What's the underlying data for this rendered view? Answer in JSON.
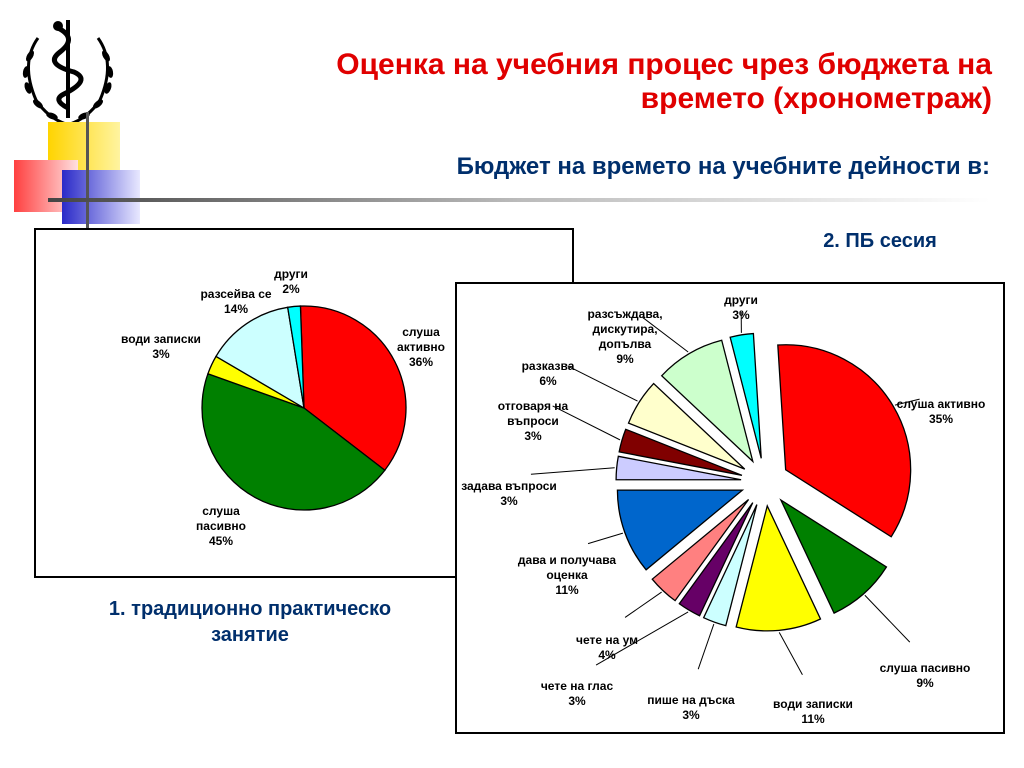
{
  "slide": {
    "title_line1": "Оценка на учебния процес чрез бюджета на",
    "title_line2": "времето (хронометраж)",
    "subtitle": "Бюджет на времето на учебните дейности в:",
    "caption1_line1": "1. традиционно практическо",
    "caption1_line2": "занятие",
    "caption2": "2. ПБ сесия",
    "colors": {
      "title": "#e00000",
      "subtitle": "#002f6c"
    }
  },
  "chart_data": [
    {
      "type": "pie",
      "title": "",
      "slices": [
        {
          "label_lines": [
            "слуша",
            "активно"
          ],
          "value": 36,
          "pct_label": "36%",
          "color": "#ff0000"
        },
        {
          "label_lines": [
            "слуша",
            "пасивно"
          ],
          "value": 45,
          "pct_label": "45%",
          "color": "#008000"
        },
        {
          "label_lines": [
            "води записки"
          ],
          "value": 3,
          "pct_label": "3%",
          "color": "#ffff00"
        },
        {
          "label_lines": [
            "разсейва се"
          ],
          "value": 14,
          "pct_label": "14%",
          "color": "#ccffff"
        },
        {
          "label_lines": [
            "други"
          ],
          "value": 2,
          "pct_label": "2%",
          "color": "#00ffff"
        }
      ]
    },
    {
      "type": "pie",
      "title": "",
      "exploded": true,
      "slices": [
        {
          "label_lines": [
            "слуша активно"
          ],
          "value": 35,
          "pct_label": "35%",
          "color": "#ff0000"
        },
        {
          "label_lines": [
            "слуша пасивно"
          ],
          "value": 9,
          "pct_label": "9%",
          "color": "#008000"
        },
        {
          "label_lines": [
            "води записки"
          ],
          "value": 11,
          "pct_label": "11%",
          "color": "#ffff00"
        },
        {
          "label_lines": [
            "пише на дъска"
          ],
          "value": 3,
          "pct_label": "3%",
          "color": "#ccffff"
        },
        {
          "label_lines": [
            "чете на глас"
          ],
          "value": 3,
          "pct_label": "3%",
          "color": "#660066"
        },
        {
          "label_lines": [
            "чете на ум"
          ],
          "value": 4,
          "pct_label": "4%",
          "color": "#ff8080"
        },
        {
          "label_lines": [
            "дава и получава",
            "оценка"
          ],
          "value": 11,
          "pct_label": "11%",
          "color": "#0066cc"
        },
        {
          "label_lines": [
            "задава въпроси"
          ],
          "value": 3,
          "pct_label": "3%",
          "color": "#ccccff"
        },
        {
          "label_lines": [
            "отговаря на",
            "въпроси"
          ],
          "value": 3,
          "pct_label": "3%",
          "color": "#800000"
        },
        {
          "label_lines": [
            "разказва"
          ],
          "value": 6,
          "pct_label": "6%",
          "color": "#ffffcc"
        },
        {
          "label_lines": [
            "разсъждава,",
            "дискутира,",
            "допълва"
          ],
          "value": 9,
          "pct_label": "9%",
          "color": "#ccffcc"
        },
        {
          "label_lines": [
            "други"
          ],
          "value": 3,
          "pct_label": "3%",
          "color": "#00ffff"
        }
      ]
    }
  ]
}
